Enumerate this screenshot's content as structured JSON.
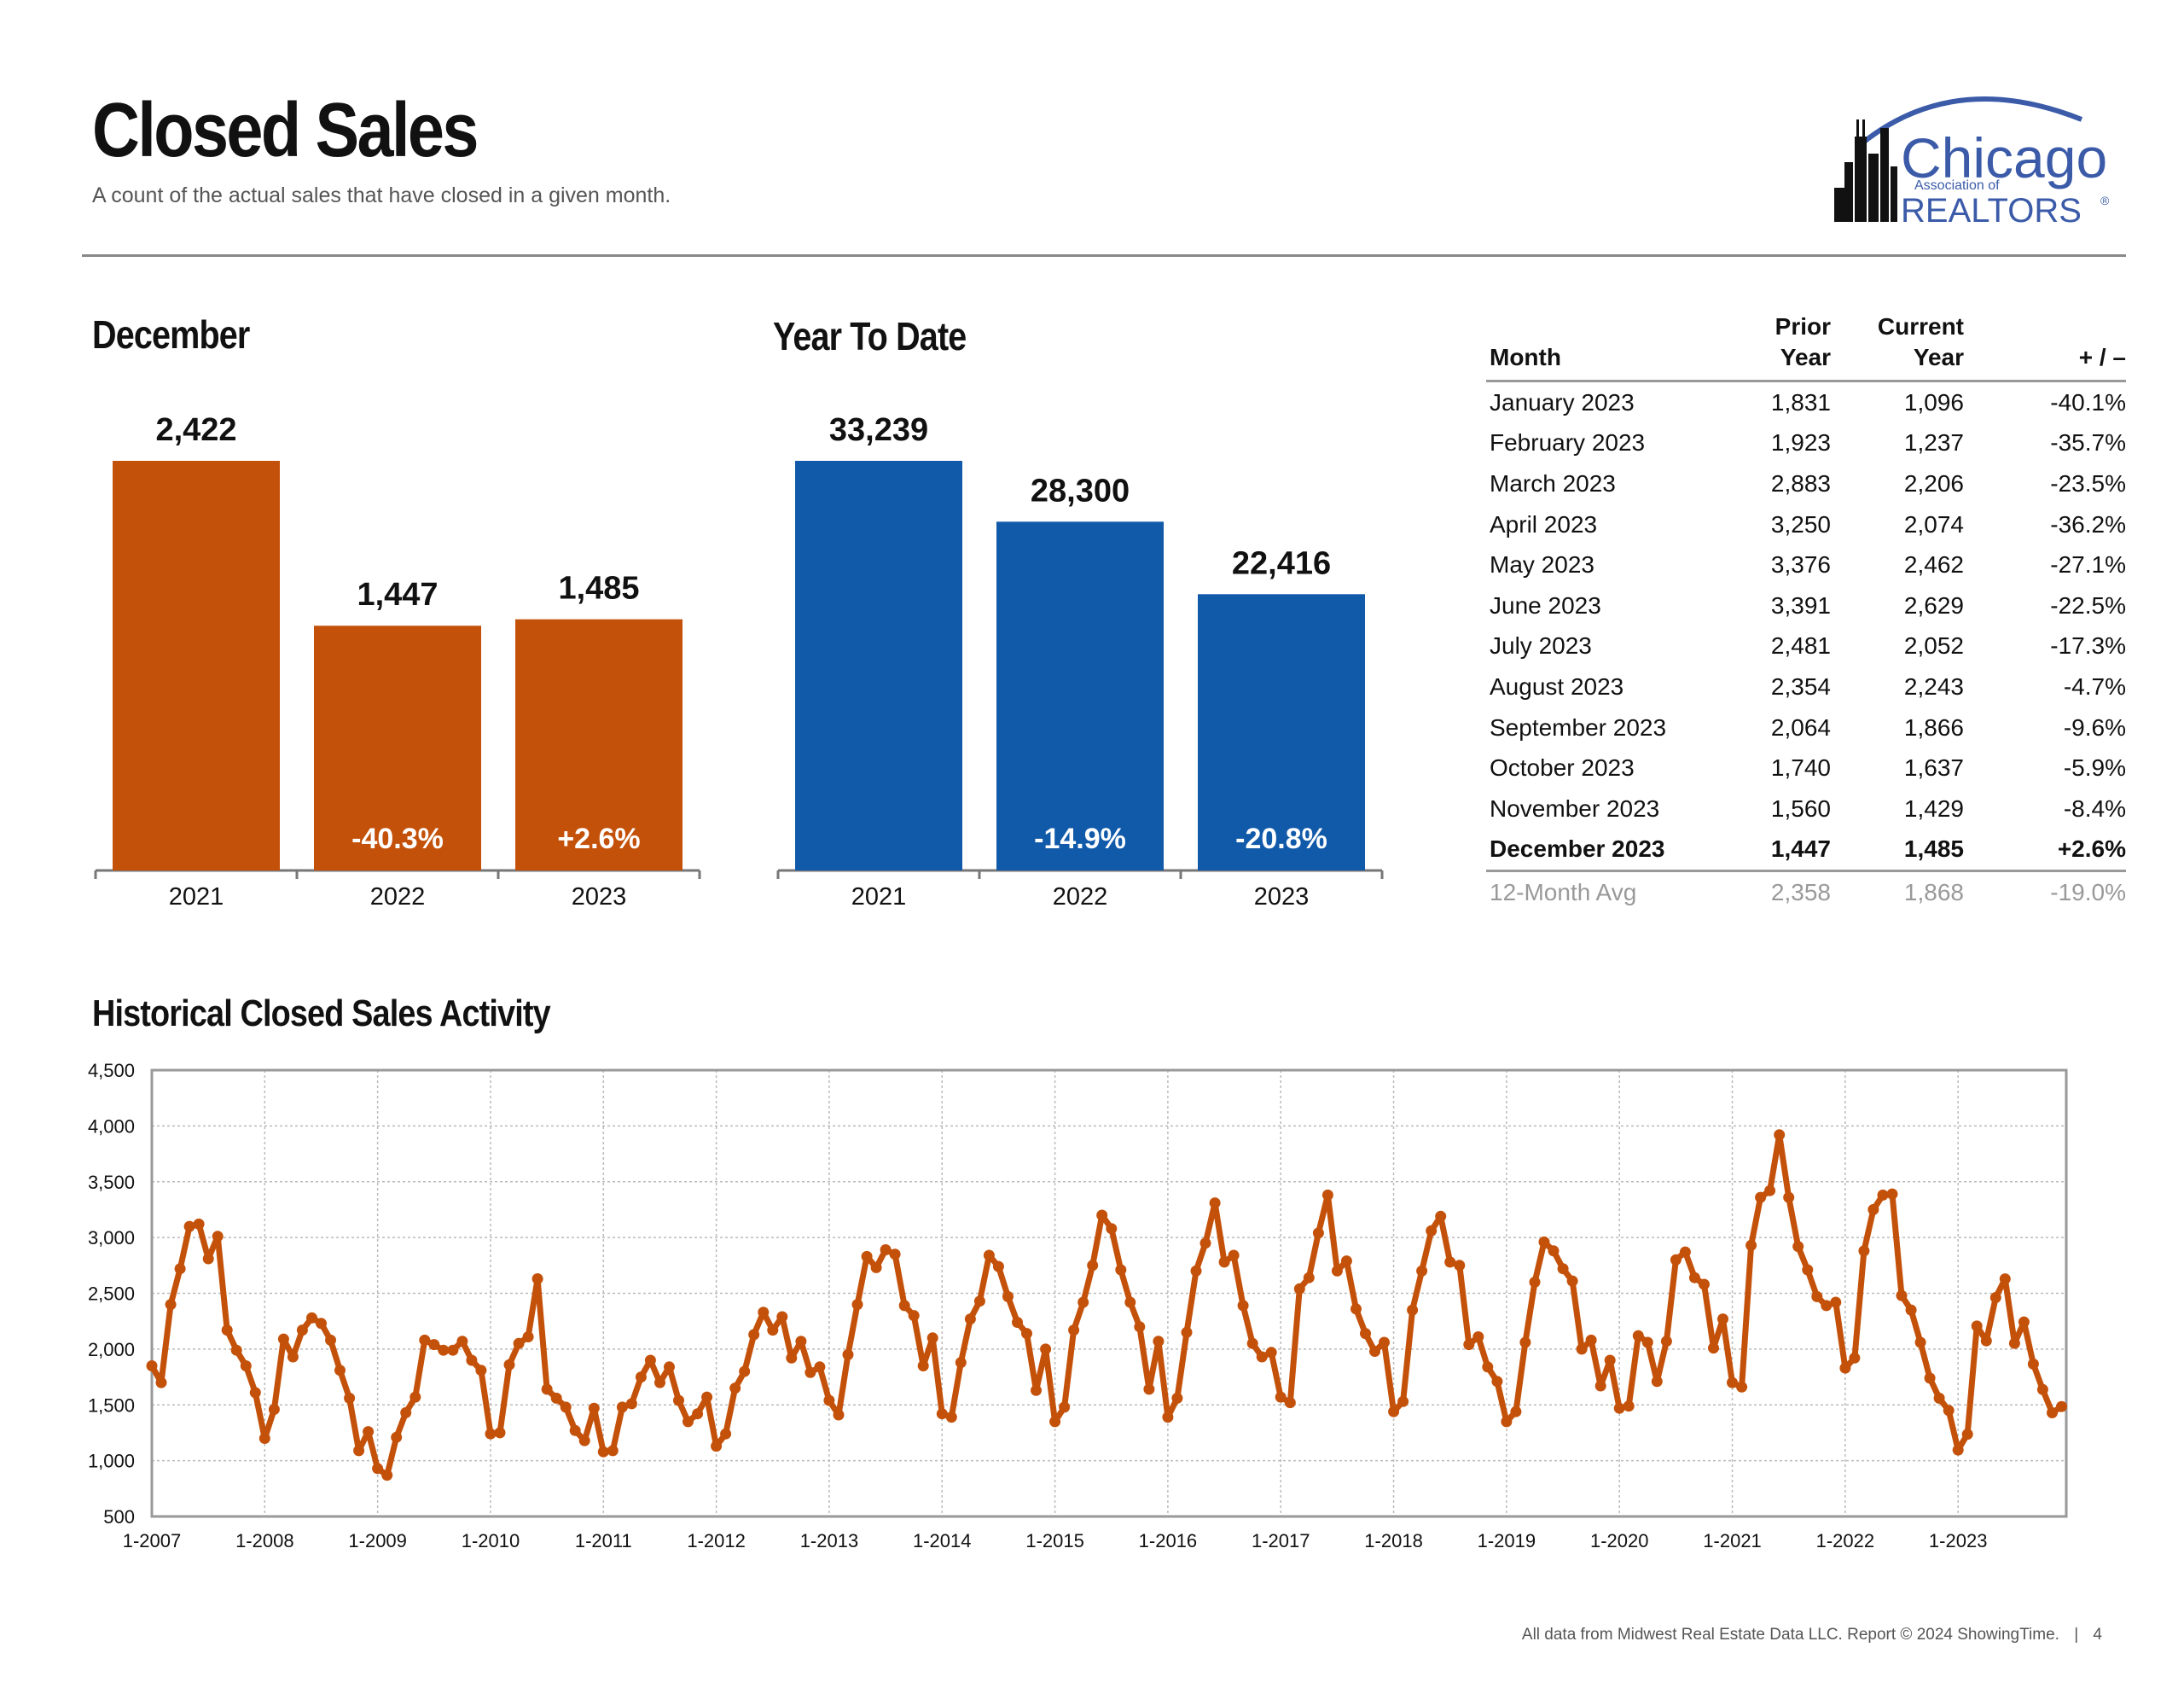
{
  "header": {
    "title": "Closed Sales",
    "subtitle": "A count of the actual sales that have closed in a given month.",
    "logo": {
      "name": "Chicago",
      "line2": "Association of",
      "line3": "REALTORS",
      "mark": "®"
    }
  },
  "colors": {
    "orange": "#C4510A",
    "blue": "#115AAA",
    "line": "#C4510A",
    "grid": "#BBBBBB",
    "gray_text": "#999999"
  },
  "sections": {
    "december_title": "December",
    "ytd_title": "Year To Date",
    "historical_title": "Historical Closed Sales Activity"
  },
  "table": {
    "headers": {
      "month": "Month",
      "prior_1": "Prior",
      "prior_2": "Year",
      "current_1": "Current",
      "current_2": "Year",
      "change": "+ / –"
    },
    "rows": [
      {
        "month": "January 2023",
        "prior": "1,831",
        "current": "1,096",
        "change": "-40.1%"
      },
      {
        "month": "February 2023",
        "prior": "1,923",
        "current": "1,237",
        "change": "-35.7%"
      },
      {
        "month": "March 2023",
        "prior": "2,883",
        "current": "2,206",
        "change": "-23.5%"
      },
      {
        "month": "April 2023",
        "prior": "3,250",
        "current": "2,074",
        "change": "-36.2%"
      },
      {
        "month": "May 2023",
        "prior": "3,376",
        "current": "2,462",
        "change": "-27.1%"
      },
      {
        "month": "June 2023",
        "prior": "3,391",
        "current": "2,629",
        "change": "-22.5%"
      },
      {
        "month": "July 2023",
        "prior": "2,481",
        "current": "2,052",
        "change": "-17.3%"
      },
      {
        "month": "August 2023",
        "prior": "2,354",
        "current": "2,243",
        "change": "-4.7%"
      },
      {
        "month": "September 2023",
        "prior": "2,064",
        "current": "1,866",
        "change": "-9.6%"
      },
      {
        "month": "October 2023",
        "prior": "1,740",
        "current": "1,637",
        "change": "-5.9%"
      },
      {
        "month": "November 2023",
        "prior": "1,560",
        "current": "1,429",
        "change": "-8.4%"
      },
      {
        "month": "December 2023",
        "prior": "1,447",
        "current": "1,485",
        "change": "+2.6%"
      }
    ],
    "avg": {
      "month": "12-Month Avg",
      "prior": "2,358",
      "current": "1,868",
      "change": "-19.0%"
    }
  },
  "chart_data": [
    {
      "type": "bar",
      "title": "December",
      "categories": [
        "2021",
        "2022",
        "2023"
      ],
      "values": [
        2422,
        1447,
        1485
      ],
      "value_labels": [
        "2,422",
        "1,447",
        "1,485"
      ],
      "change_labels": [
        "",
        "-40.3%",
        "+2.6%"
      ],
      "ylim": [
        0,
        2422
      ]
    },
    {
      "type": "bar",
      "title": "Year To Date",
      "categories": [
        "2021",
        "2022",
        "2023"
      ],
      "values": [
        33239,
        28300,
        22416
      ],
      "value_labels": [
        "33,239",
        "28,300",
        "22,416"
      ],
      "change_labels": [
        "",
        "-14.9%",
        "-20.8%"
      ],
      "ylim": [
        0,
        33239
      ]
    },
    {
      "type": "line",
      "title": "Historical Closed Sales Activity",
      "x_start": "1-2007",
      "x_step": "1 month",
      "x_tick_labels": [
        "1-2007",
        "1-2008",
        "1-2009",
        "1-2010",
        "1-2011",
        "1-2012",
        "1-2013",
        "1-2014",
        "1-2015",
        "1-2016",
        "1-2017",
        "1-2018",
        "1-2019",
        "1-2020",
        "1-2021",
        "1-2022",
        "1-2023"
      ],
      "y_ticks": [
        500,
        1000,
        1500,
        2000,
        2500,
        3000,
        3500,
        4000,
        4500
      ],
      "y_tick_labels": [
        "500",
        "1,000",
        "1,500",
        "2,000",
        "2,500",
        "3,000",
        "3,500",
        "4,000",
        "4,500"
      ],
      "ylim": [
        500,
        4500
      ],
      "grid": true,
      "values": [
        1850,
        1700,
        2400,
        2720,
        3100,
        3120,
        2810,
        3010,
        2170,
        1990,
        1850,
        1610,
        1200,
        1460,
        2090,
        1930,
        2170,
        2280,
        2230,
        2080,
        1810,
        1560,
        1090,
        1260,
        930,
        870,
        1210,
        1430,
        1570,
        2080,
        2040,
        1990,
        1990,
        2070,
        1900,
        1810,
        1240,
        1250,
        1860,
        2050,
        2110,
        2630,
        1640,
        1560,
        1480,
        1270,
        1180,
        1470,
        1080,
        1090,
        1480,
        1510,
        1750,
        1900,
        1700,
        1840,
        1540,
        1350,
        1420,
        1570,
        1130,
        1240,
        1650,
        1800,
        2130,
        2330,
        2170,
        2290,
        1920,
        2070,
        1790,
        1840,
        1540,
        1410,
        1950,
        2400,
        2830,
        2730,
        2890,
        2850,
        2390,
        2300,
        1850,
        2100,
        1420,
        1390,
        1880,
        2270,
        2430,
        2840,
        2740,
        2470,
        2240,
        2140,
        1630,
        2000,
        1350,
        1480,
        2170,
        2420,
        2750,
        3200,
        3080,
        2710,
        2420,
        2200,
        1640,
        2070,
        1390,
        1560,
        2150,
        2700,
        2950,
        3310,
        2780,
        2840,
        2390,
        2050,
        1930,
        1970,
        1570,
        1520,
        2540,
        2640,
        3040,
        3380,
        2700,
        2790,
        2360,
        2140,
        1980,
        2060,
        1440,
        1530,
        2350,
        2700,
        3060,
        3190,
        2780,
        2750,
        2040,
        2110,
        1840,
        1710,
        1350,
        1440,
        2060,
        2600,
        2960,
        2880,
        2720,
        2610,
        2000,
        2080,
        1670,
        1900,
        1470,
        1490,
        2120,
        2060,
        1710,
        2070,
        2800,
        2870,
        2640,
        2580,
        2010,
        2270,
        1700,
        1660,
        2930,
        3360,
        3420,
        3920,
        3360,
        2920,
        2710,
        2470,
        2390,
        2420,
        1830,
        1920,
        2880,
        3250,
        3380,
        3390,
        2480,
        2350,
        2060,
        1740,
        1560,
        1450,
        1096,
        1237,
        2206,
        2074,
        2462,
        2629,
        2052,
        2243,
        1866,
        1637,
        1429,
        1485
      ]
    }
  ],
  "footer": {
    "text": "All data from Midwest Real Estate Data LLC. Report © 2024 ShowingTime.",
    "separator": "|",
    "page": "4"
  }
}
